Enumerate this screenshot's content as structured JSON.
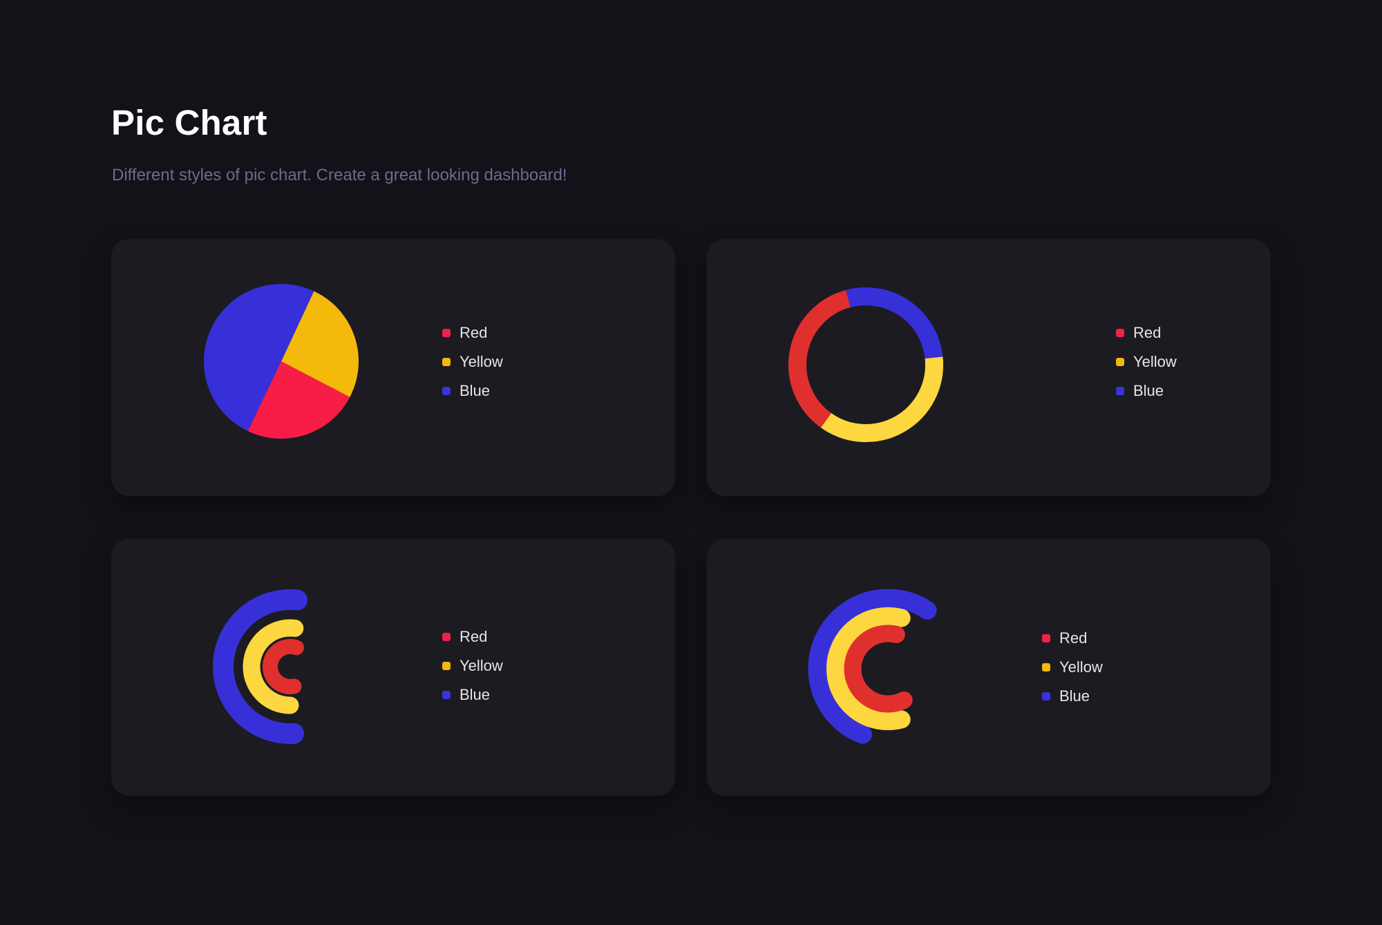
{
  "header": {
    "title": "Pic Chart",
    "subtitle": "Different styles of pic chart. Create a great looking dashboard!"
  },
  "colors": {
    "page_bg": "#131218",
    "card_bg": "#1c1b21",
    "legend_red": "#f0224a",
    "legend_yellow": "#f4b80a",
    "legend_blue": "#3a33da"
  },
  "cards": [
    {
      "style": "pie",
      "legend": [
        {
          "label": "Red",
          "color": "#f0224a"
        },
        {
          "label": "Yellow",
          "color": "#f4b80a"
        },
        {
          "label": "Blue",
          "color": "#3a33da"
        }
      ]
    },
    {
      "style": "donut",
      "legend": [
        {
          "label": "Red",
          "color": "#f0224a"
        },
        {
          "label": "Yellow",
          "color": "#f4b80a"
        },
        {
          "label": "Blue",
          "color": "#3a33da"
        }
      ]
    },
    {
      "style": "concentric-arcs",
      "legend": [
        {
          "label": "Red",
          "color": "#f0224a"
        },
        {
          "label": "Yellow",
          "color": "#f4b80a"
        },
        {
          "label": "Blue",
          "color": "#3a33da"
        }
      ]
    },
    {
      "style": "overlapping-arcs",
      "legend": [
        {
          "label": "Red",
          "color": "#f0224a"
        },
        {
          "label": "Yellow",
          "color": "#f4b80a"
        },
        {
          "label": "Blue",
          "color": "#3a33da"
        }
      ]
    }
  ],
  "chart_data": [
    {
      "type": "pie",
      "title": "",
      "categories": [
        "Red",
        "Yellow",
        "Blue"
      ],
      "values": [
        24.5,
        25.7,
        49.8
      ],
      "colors": [
        "#f81d47",
        "#f3b90b",
        "#3730d9"
      ],
      "start_angles_deg": [
        117.5,
        25,
        205.6
      ],
      "end_angles_deg": [
        205.6,
        117.5,
        385
      ],
      "legend_position": "right"
    },
    {
      "type": "pie",
      "variant": "donut",
      "title": "",
      "categories": [
        "Red",
        "Yellow",
        "Blue"
      ],
      "values": [
        36,
        36.5,
        27.5
      ],
      "colors": [
        "#e0302e",
        "#fdd73f",
        "#3730d9"
      ],
      "start_angles_deg": [
        215.5,
        84,
        345
      ],
      "end_angles_deg": [
        345,
        215.5,
        444
      ],
      "legend_position": "right"
    },
    {
      "type": "pie",
      "variant": "concentric-arcs",
      "title": "",
      "categories": [
        "Red",
        "Yellow",
        "Blue"
      ],
      "colors": [
        "#e0302e",
        "#fdd73f",
        "#3730d9"
      ],
      "radii": [
        29,
        56,
        97
      ],
      "stroke_widths": [
        22,
        25,
        30
      ],
      "start_angles_deg": [
        169,
        180,
        177
      ],
      "end_angles_deg": [
        378,
        367,
        366
      ],
      "legend_position": "right"
    },
    {
      "type": "pie",
      "variant": "overlapping-arcs",
      "title": "",
      "categories": [
        "Red",
        "Yellow",
        "Blue"
      ],
      "colors": [
        "#e0302e",
        "#fdd73f",
        "#3730d9"
      ],
      "radii": [
        51,
        76,
        102
      ],
      "stroke_widths": [
        25,
        26,
        27
      ],
      "start_angles_deg": [
        153,
        165,
        201
      ],
      "end_angles_deg": [
        374,
        375,
        394
      ],
      "legend_position": "right"
    }
  ]
}
